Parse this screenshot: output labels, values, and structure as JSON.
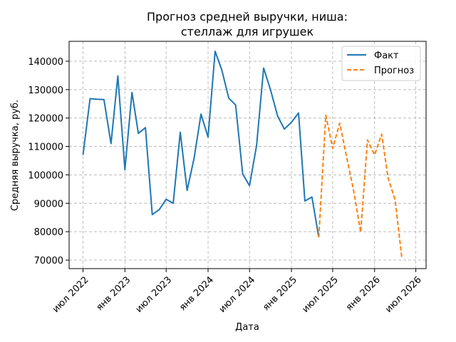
{
  "chart_data": {
    "type": "line",
    "title_lines": [
      "Прогноз средней выручки, ниша:",
      "стеллаж для игрушек"
    ],
    "xlabel": "Дата",
    "ylabel": "Средняя выручка, руб.",
    "xlim": [
      "2022-05-01",
      "2026-08-15"
    ],
    "ylim": [
      67000,
      147000
    ],
    "x_ticks": [
      {
        "date": "2022-07-01",
        "label": "июл 2022"
      },
      {
        "date": "2023-01-01",
        "label": "янв 2023"
      },
      {
        "date": "2023-07-01",
        "label": "июл 2023"
      },
      {
        "date": "2024-01-01",
        "label": "янв 2024"
      },
      {
        "date": "2024-07-01",
        "label": "июл 2024"
      },
      {
        "date": "2025-01-01",
        "label": "янв 2025"
      },
      {
        "date": "2025-07-01",
        "label": "июл 2025"
      },
      {
        "date": "2026-01-01",
        "label": "янв 2026"
      },
      {
        "date": "2026-07-01",
        "label": "июл 2026"
      }
    ],
    "y_ticks": [
      70000,
      80000,
      90000,
      100000,
      110000,
      120000,
      130000,
      140000
    ],
    "grid": true,
    "legend_position": "top-right",
    "series": [
      {
        "name": "Факт",
        "color": "#1f77b4",
        "style": "solid",
        "points": [
          [
            "2022-07-01",
            107000
          ],
          [
            "2022-08-01",
            126800
          ],
          [
            "2022-09-01",
            126600
          ],
          [
            "2022-10-01",
            126500
          ],
          [
            "2022-11-01",
            111000
          ],
          [
            "2022-12-01",
            134800
          ],
          [
            "2023-01-01",
            101800
          ],
          [
            "2023-02-01",
            129000
          ],
          [
            "2023-03-01",
            114600
          ],
          [
            "2023-04-01",
            116600
          ],
          [
            "2023-05-01",
            86000
          ],
          [
            "2023-06-01",
            87800
          ],
          [
            "2023-07-01",
            91400
          ],
          [
            "2023-08-01",
            90000
          ],
          [
            "2023-09-01",
            115000
          ],
          [
            "2023-10-01",
            94500
          ],
          [
            "2023-11-01",
            106000
          ],
          [
            "2023-12-01",
            121400
          ],
          [
            "2024-01-01",
            113300
          ],
          [
            "2024-02-01",
            143500
          ],
          [
            "2024-03-01",
            137000
          ],
          [
            "2024-04-01",
            127000
          ],
          [
            "2024-05-01",
            124600
          ],
          [
            "2024-06-01",
            100300
          ],
          [
            "2024-07-01",
            96200
          ],
          [
            "2024-08-01",
            110300
          ],
          [
            "2024-09-01",
            137600
          ],
          [
            "2024-10-01",
            130000
          ],
          [
            "2024-11-01",
            120800
          ],
          [
            "2024-12-01",
            116100
          ],
          [
            "2025-01-01",
            118500
          ],
          [
            "2025-02-01",
            121800
          ],
          [
            "2025-03-01",
            90800
          ],
          [
            "2025-04-01",
            92200
          ],
          [
            "2025-05-01",
            78000
          ]
        ]
      },
      {
        "name": "Прогноз",
        "color": "#ff7f0e",
        "style": "dashed",
        "points": [
          [
            "2025-05-01",
            78000
          ],
          [
            "2025-06-01",
            121000
          ],
          [
            "2025-07-01",
            109300
          ],
          [
            "2025-08-01",
            118200
          ],
          [
            "2025-09-01",
            106000
          ],
          [
            "2025-10-01",
            94500
          ],
          [
            "2025-11-01",
            79800
          ],
          [
            "2025-12-01",
            112300
          ],
          [
            "2026-01-01",
            107000
          ],
          [
            "2026-02-01",
            114300
          ],
          [
            "2026-03-01",
            99000
          ],
          [
            "2026-04-01",
            91200
          ],
          [
            "2026-05-01",
            70500
          ]
        ]
      }
    ]
  }
}
